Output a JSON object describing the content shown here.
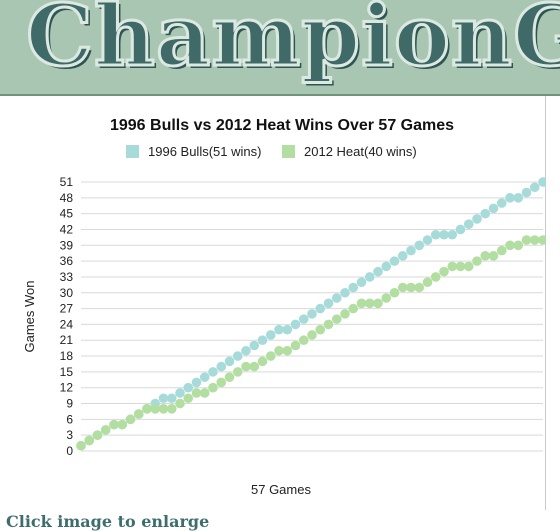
{
  "banner": {
    "title": "ChampionGr"
  },
  "chart_data": {
    "type": "line",
    "title": "1996 Bulls vs 2012 Heat Wins Over 57 Games",
    "xlabel": "57 Games",
    "ylabel": "Games Won",
    "ylim": [
      0,
      51
    ],
    "yticks": [
      0,
      3,
      6,
      9,
      12,
      15,
      18,
      21,
      24,
      27,
      30,
      33,
      36,
      39,
      42,
      45,
      48,
      51
    ],
    "grid": true,
    "legend_position": "top",
    "x": [
      1,
      2,
      3,
      4,
      5,
      6,
      7,
      8,
      9,
      10,
      11,
      12,
      13,
      14,
      15,
      16,
      17,
      18,
      19,
      20,
      21,
      22,
      23,
      24,
      25,
      26,
      27,
      28,
      29,
      30,
      31,
      32,
      33,
      34,
      35,
      36,
      37,
      38,
      39,
      40,
      41,
      42,
      43,
      44,
      45,
      46,
      47,
      48,
      49,
      50,
      51,
      52,
      53,
      54,
      55,
      56,
      57
    ],
    "series": [
      {
        "name": "1996 Bulls(51 wins)",
        "color": "#a6dbd9",
        "values": [
          1,
          2,
          3,
          4,
          5,
          5,
          6,
          7,
          8,
          9,
          10,
          10,
          11,
          12,
          13,
          14,
          15,
          16,
          17,
          18,
          19,
          20,
          21,
          22,
          23,
          23,
          24,
          25,
          26,
          27,
          28,
          29,
          30,
          31,
          32,
          33,
          34,
          35,
          36,
          37,
          38,
          39,
          40,
          41,
          41,
          41,
          42,
          43,
          44,
          45,
          46,
          47,
          48,
          48,
          49,
          50,
          51
        ]
      },
      {
        "name": "2012 Heat(40 wins)",
        "color": "#b3dea1",
        "values": [
          1,
          2,
          3,
          4,
          5,
          5,
          6,
          7,
          8,
          8,
          8,
          8,
          9,
          10,
          11,
          11,
          12,
          13,
          14,
          15,
          16,
          16,
          17,
          18,
          19,
          19,
          20,
          21,
          22,
          23,
          24,
          25,
          26,
          27,
          28,
          28,
          28,
          29,
          30,
          31,
          31,
          31,
          32,
          33,
          34,
          35,
          35,
          35,
          36,
          37,
          37,
          38,
          39,
          39,
          40,
          40,
          40
        ]
      }
    ]
  },
  "footer": {
    "link_text": "Click image to enlarge"
  }
}
